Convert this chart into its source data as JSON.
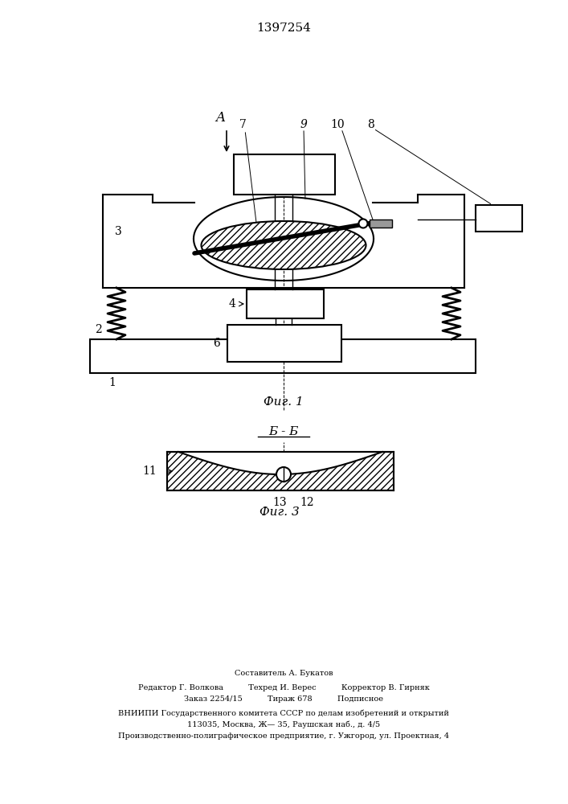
{
  "title": "1397254",
  "bg_color": "#ffffff",
  "line_color": "#000000",
  "footer_lines": [
    "Составитель А. Букатов",
    "Редактор Г. Волкова          Техред И. Верес          Корректор В. Гирняк",
    "Заказ 2254/15          Тираж 678          Подписное",
    "ВНИИПИ Государственного комитета СССР по делам изобретений и открытий",
    "113035, Москва, Ж— 35, Раушская наб., д. 4/5",
    "Производственно-полиграфическое предприятие, г. Ужгород, ул. Проектная, 4"
  ]
}
